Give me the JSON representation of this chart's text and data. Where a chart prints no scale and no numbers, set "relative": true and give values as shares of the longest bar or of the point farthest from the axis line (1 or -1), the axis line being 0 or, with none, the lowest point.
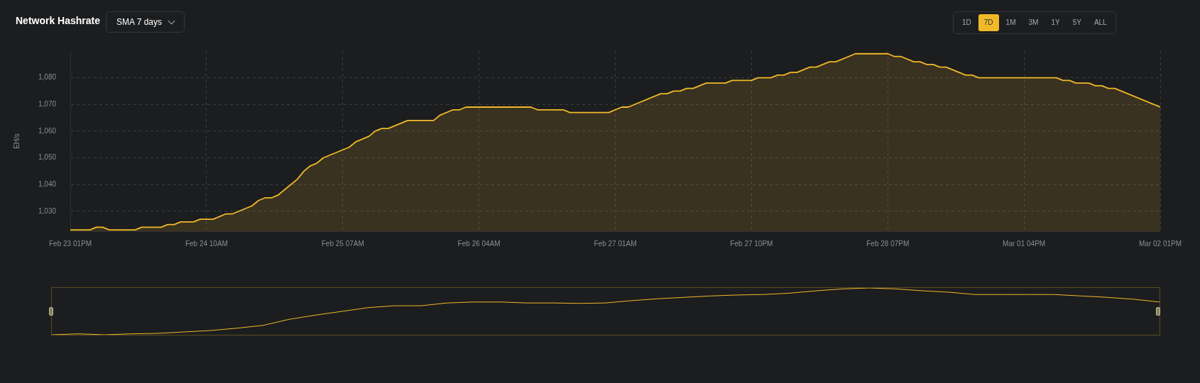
{
  "chart_data": [
    {
      "type": "area",
      "title": "Network Hashrate",
      "ylabel": "EH/s",
      "annotations": [
        "SMA 7 days",
        "1D",
        "7D",
        "1M",
        "3M",
        "1Y",
        "5Y",
        "ALL"
      ],
      "x": [
        "--02-23T13:00",
        "--02-23T16:00",
        "--02-23T17:00",
        "--02-23T18:00",
        "--02-23T19:00",
        "--02-23T23:00",
        "--02-24T00:00",
        "--02-24T03:00",
        "--02-24T04:00",
        "--02-24T05:00",
        "--02-24T06:00",
        "--02-24T08:00",
        "--02-24T09:00",
        "--02-24T11:00",
        "--02-24T13:00",
        "--02-24T14:00",
        "--02-24T17:00",
        "--02-24T18:00",
        "--02-24T19:00",
        "--02-24T20:00",
        "--02-24T21:00",
        "--02-25T00:00",
        "--02-25T01:00",
        "--02-25T02:00",
        "--02-25T03:00",
        "--02-25T04:00",
        "--02-25T08:00",
        "--02-25T09:00",
        "--02-25T11:00",
        "--02-25T12:00",
        "--02-25T13:00",
        "--02-25T14:00",
        "--02-25T17:00",
        "--02-25T21:00",
        "--02-25T22:00",
        "--02-26T00:00",
        "--02-26T01:00",
        "--02-26T02:00",
        "--02-26T12:00",
        "--02-26T13:00",
        "--02-26T17:00",
        "--02-26T18:00",
        "--02-27T00:00",
        "--02-27T02:00",
        "--02-27T03:00",
        "--02-27T08:00",
        "--02-27T09:00",
        "--02-27T10:00",
        "--02-27T11:00",
        "--02-27T12:00",
        "--02-27T13:00",
        "--02-27T15:00",
        "--02-27T18:00",
        "--02-27T19:00",
        "--02-27T22:00",
        "--02-27T23:00",
        "--02-28T01:00",
        "--02-28T02:00",
        "--02-28T03:00",
        "--02-28T04:00",
        "--02-28T05:00",
        "--02-28T07:00",
        "--02-28T08:00",
        "--02-28T10:00",
        "--02-28T11:00",
        "--02-28T14:00",
        "--02-28T19:00",
        "--02-28T20:00",
        "--02-28T21:00",
        "--02-28T23:00",
        "--03-01T00:00",
        "--03-01T01:00",
        "--03-01T02:00",
        "--03-01T03:00",
        "--03-01T04:00",
        "--03-01T07:00",
        "--03-01T08:00",
        "--03-01T09:00",
        "--03-01T21:00",
        "--03-01T22:00",
        "--03-01T23:00",
        "--03-02T00:00",
        "--03-02T02:00",
        "--03-02T03:00",
        "--03-02T04:00",
        "--03-02T05:00",
        "--03-02T06:00",
        "--03-02T13:00"
      ],
      "series": [
        {
          "color": "#f0b928",
          "values": [
            1023,
            1023,
            1024,
            1024,
            1023,
            1023,
            1024,
            1024,
            1025,
            1025,
            1026,
            1026,
            1027,
            1027,
            1029,
            1029,
            1032,
            1034,
            1035,
            1035,
            1036,
            1042,
            1045,
            1047,
            1048,
            1050,
            1054,
            1056,
            1058,
            1060,
            1061,
            1061,
            1064,
            1064,
            1066,
            1068,
            1068,
            1069,
            1069,
            1068,
            1068,
            1067,
            1067,
            1069,
            1069,
            1074,
            1074,
            1075,
            1075,
            1076,
            1076,
            1078,
            1078,
            1079,
            1079,
            1080,
            1080,
            1081,
            1081,
            1082,
            1082,
            1084,
            1084,
            1086,
            1086,
            1089,
            1089,
            1088,
            1088,
            1086,
            1086,
            1085,
            1085,
            1084,
            1084,
            1081,
            1081,
            1080,
            1080,
            1079,
            1079,
            1078,
            1078,
            1077,
            1077,
            1076,
            1076,
            1069
          ]
        }
      ],
      "xlim": [
        "--02-23T13:00",
        "--03-02T13:00"
      ],
      "xticks": [
        {
          "value": "--02-23T13:00",
          "label": "Feb 23 01PM"
        },
        {
          "value": "--02-24T10:00",
          "label": "Feb 24 10AM"
        },
        {
          "value": "--02-25T07:00",
          "label": "Feb 25 07AM"
        },
        {
          "value": "--02-26T04:00",
          "label": "Feb 26 04AM"
        },
        {
          "value": "--02-27T01:00",
          "label": "Feb 27 01AM"
        },
        {
          "value": "--02-27T22:00",
          "label": "Feb 27 10PM"
        },
        {
          "value": "--02-28T19:00",
          "label": "Feb 28 07PM"
        },
        {
          "value": "--03-01T16:00",
          "label": "Mar 01 04PM"
        },
        {
          "value": "--03-02T13:00",
          "label": "Mar 02 01PM"
        }
      ],
      "ylim": [
        1022.5,
        1090
      ],
      "yticks": [
        {
          "value": 1030,
          "label": "1,030"
        },
        {
          "value": 1040,
          "label": "1,040"
        },
        {
          "value": 1050,
          "label": "1,050"
        },
        {
          "value": 1060,
          "label": "1,060"
        },
        {
          "value": 1070,
          "label": "1,070"
        },
        {
          "value": 1080,
          "label": "1,080"
        }
      ],
      "grid": true
    },
    {
      "type": "line",
      "categories": [
        null,
        null,
        null,
        null,
        null,
        null,
        null,
        null,
        null,
        null,
        null,
        null,
        null,
        null,
        null,
        null,
        null,
        null,
        null,
        null,
        null,
        null,
        null,
        null,
        null,
        null,
        null,
        null,
        null,
        null,
        null,
        null,
        null,
        null,
        null,
        null,
        null,
        null,
        null,
        null,
        null,
        null,
        null
      ],
      "series": [
        {
          "color": "#f0b928",
          "values": [
            0,
            0.02,
            0,
            0.02,
            0.03,
            0.06,
            0.09,
            0.14,
            0.2,
            0.33,
            0.42,
            0.5,
            0.58,
            0.62,
            0.62,
            0.68,
            0.7,
            0.7,
            0.68,
            0.68,
            0.67,
            0.68,
            0.73,
            0.77,
            0.8,
            0.83,
            0.85,
            0.86,
            0.89,
            0.94,
            0.98,
            1,
            0.98,
            0.94,
            0.91,
            0.86,
            0.86,
            0.86,
            0.86,
            0.83,
            0.8,
            0.76,
            0.7
          ]
        }
      ],
      "relative": true,
      "tick_labels": false
    }
  ]
}
